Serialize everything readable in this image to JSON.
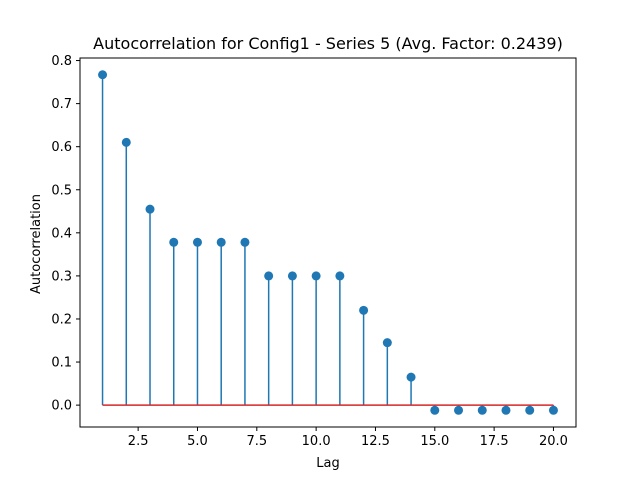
{
  "chart_data": {
    "type": "stem",
    "title": "Autocorrelation for Config1 - Series 5 (Avg. Factor: 0.2439)",
    "xlabel": "Lag",
    "ylabel": "Autocorrelation",
    "x": [
      1,
      2,
      3,
      4,
      5,
      6,
      7,
      8,
      9,
      10,
      11,
      12,
      13,
      14,
      15,
      16,
      17,
      18,
      19,
      20
    ],
    "y": [
      0.767,
      0.61,
      0.455,
      0.378,
      0.378,
      0.378,
      0.378,
      0.3,
      0.3,
      0.3,
      0.3,
      0.22,
      0.145,
      0.065,
      -0.012,
      -0.012,
      -0.012,
      -0.012,
      -0.012,
      -0.012
    ],
    "xlim": [
      0.05,
      20.95
    ],
    "ylim": [
      -0.0508,
      0.8059
    ],
    "xticks": [
      2.5,
      5.0,
      7.5,
      10.0,
      12.5,
      15.0,
      17.5,
      20.0
    ],
    "xtick_labels": [
      "2.5",
      "5.0",
      "7.5",
      "10.0",
      "12.5",
      "15.0",
      "17.5",
      "20.0"
    ],
    "yticks": [
      0.0,
      0.1,
      0.2,
      0.3,
      0.4,
      0.5,
      0.6,
      0.7,
      0.8
    ],
    "ytick_labels": [
      "0.0",
      "0.1",
      "0.2",
      "0.3",
      "0.4",
      "0.5",
      "0.6",
      "0.7",
      "0.8"
    ],
    "grid": false,
    "stem_color": "#1f77b4",
    "baseline_color": "#d62728"
  }
}
